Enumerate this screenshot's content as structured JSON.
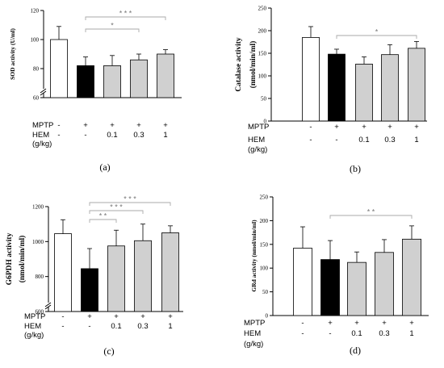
{
  "colors": {
    "control": "#ffffff",
    "mptp": "#000000",
    "hem": "#d0d0d0",
    "bracket": "#aaaaaa",
    "axis": "#000000"
  },
  "chart_data": [
    {
      "type": "bar",
      "panel_label": "(a)",
      "ylabel": "SOD activity (U/ml)",
      "ylim": [
        60,
        120
      ],
      "ticks": [
        80,
        100,
        120
      ],
      "axis_break_tick": 60,
      "categories": [
        "1",
        "2",
        "3",
        "4",
        "5"
      ],
      "values": [
        100,
        82,
        82,
        86,
        90
      ],
      "errors": [
        9,
        6,
        7,
        4,
        3
      ],
      "treatment_rows": [
        {
          "name": "MPTP",
          "values": [
            "-",
            "+",
            "+",
            "+",
            "+"
          ]
        },
        {
          "name": "HEM",
          "values": [
            "-",
            "-",
            "0.1",
            "0.3",
            "1"
          ]
        },
        {
          "name": "(g/kg)",
          "values": []
        }
      ],
      "significance": [
        {
          "from": 1,
          "to": 4,
          "label": "* * *"
        },
        {
          "from": 1,
          "to": 3,
          "label": "*"
        }
      ]
    },
    {
      "type": "bar",
      "panel_label": "(b)",
      "ylabel": [
        "Catalase activity",
        "(nmol/min/ml)"
      ],
      "ylim": [
        0,
        250
      ],
      "ticks": [
        0,
        50,
        100,
        150,
        200,
        250
      ],
      "categories": [
        "1",
        "2",
        "3",
        "4",
        "5"
      ],
      "values": [
        185,
        148,
        126,
        147,
        161
      ],
      "errors": [
        24,
        11,
        16,
        22,
        15
      ],
      "treatment_rows": [
        {
          "name": "MPTP",
          "values": [
            "-",
            "+",
            "+",
            "+",
            "+"
          ]
        },
        {
          "name": "HEM",
          "values": [
            "-",
            "-",
            "0.1",
            "0.3",
            "1"
          ]
        },
        {
          "name": "(g/kg)",
          "values": []
        }
      ],
      "significance": [
        {
          "from": 1,
          "to": 4,
          "label": "*"
        }
      ]
    },
    {
      "type": "bar",
      "panel_label": "(c)",
      "ylabel": [
        "G6PDH activity",
        "(nmol/min/ml)"
      ],
      "ylim": [
        600,
        1200
      ],
      "ticks": [
        800,
        1000,
        1200
      ],
      "axis_break_tick": 600,
      "categories": [
        "1",
        "2",
        "3",
        "4",
        "5"
      ],
      "values": [
        1045,
        845,
        975,
        1005,
        1050
      ],
      "errors": [
        80,
        115,
        90,
        95,
        40
      ],
      "treatment_rows": [
        {
          "name": "MPTP",
          "values": [
            "-",
            "+",
            "+",
            "+",
            "+"
          ]
        },
        {
          "name": "HEM",
          "values": [
            "-",
            "-",
            "0.1",
            "0.3",
            "1"
          ]
        },
        {
          "name": "(g/kg)",
          "values": []
        }
      ],
      "significance": [
        {
          "from": 1,
          "to": 4,
          "label": "* * *"
        },
        {
          "from": 1,
          "to": 3,
          "label": "* * *"
        },
        {
          "from": 1,
          "to": 2,
          "label": "* *"
        }
      ]
    },
    {
      "type": "bar",
      "panel_label": "(d)",
      "ylabel": "GRd activity (nmol/min/ml)",
      "ylim": [
        0,
        250
      ],
      "ticks": [
        0,
        50,
        100,
        150,
        200,
        250
      ],
      "categories": [
        "1",
        "2",
        "3",
        "4",
        "5"
      ],
      "values": [
        142,
        118,
        112,
        133,
        161
      ],
      "errors": [
        45,
        40,
        22,
        27,
        28
      ],
      "treatment_rows": [
        {
          "name": "MPTP",
          "values": [
            "-",
            "+",
            "+",
            "+",
            "+"
          ]
        },
        {
          "name": "HEM",
          "values": [
            "-",
            "-",
            "0.1",
            "0.3",
            "1"
          ]
        },
        {
          "name": "(g/kg)",
          "values": []
        }
      ],
      "significance": [
        {
          "from": 1,
          "to": 4,
          "label": "* *"
        }
      ]
    }
  ]
}
